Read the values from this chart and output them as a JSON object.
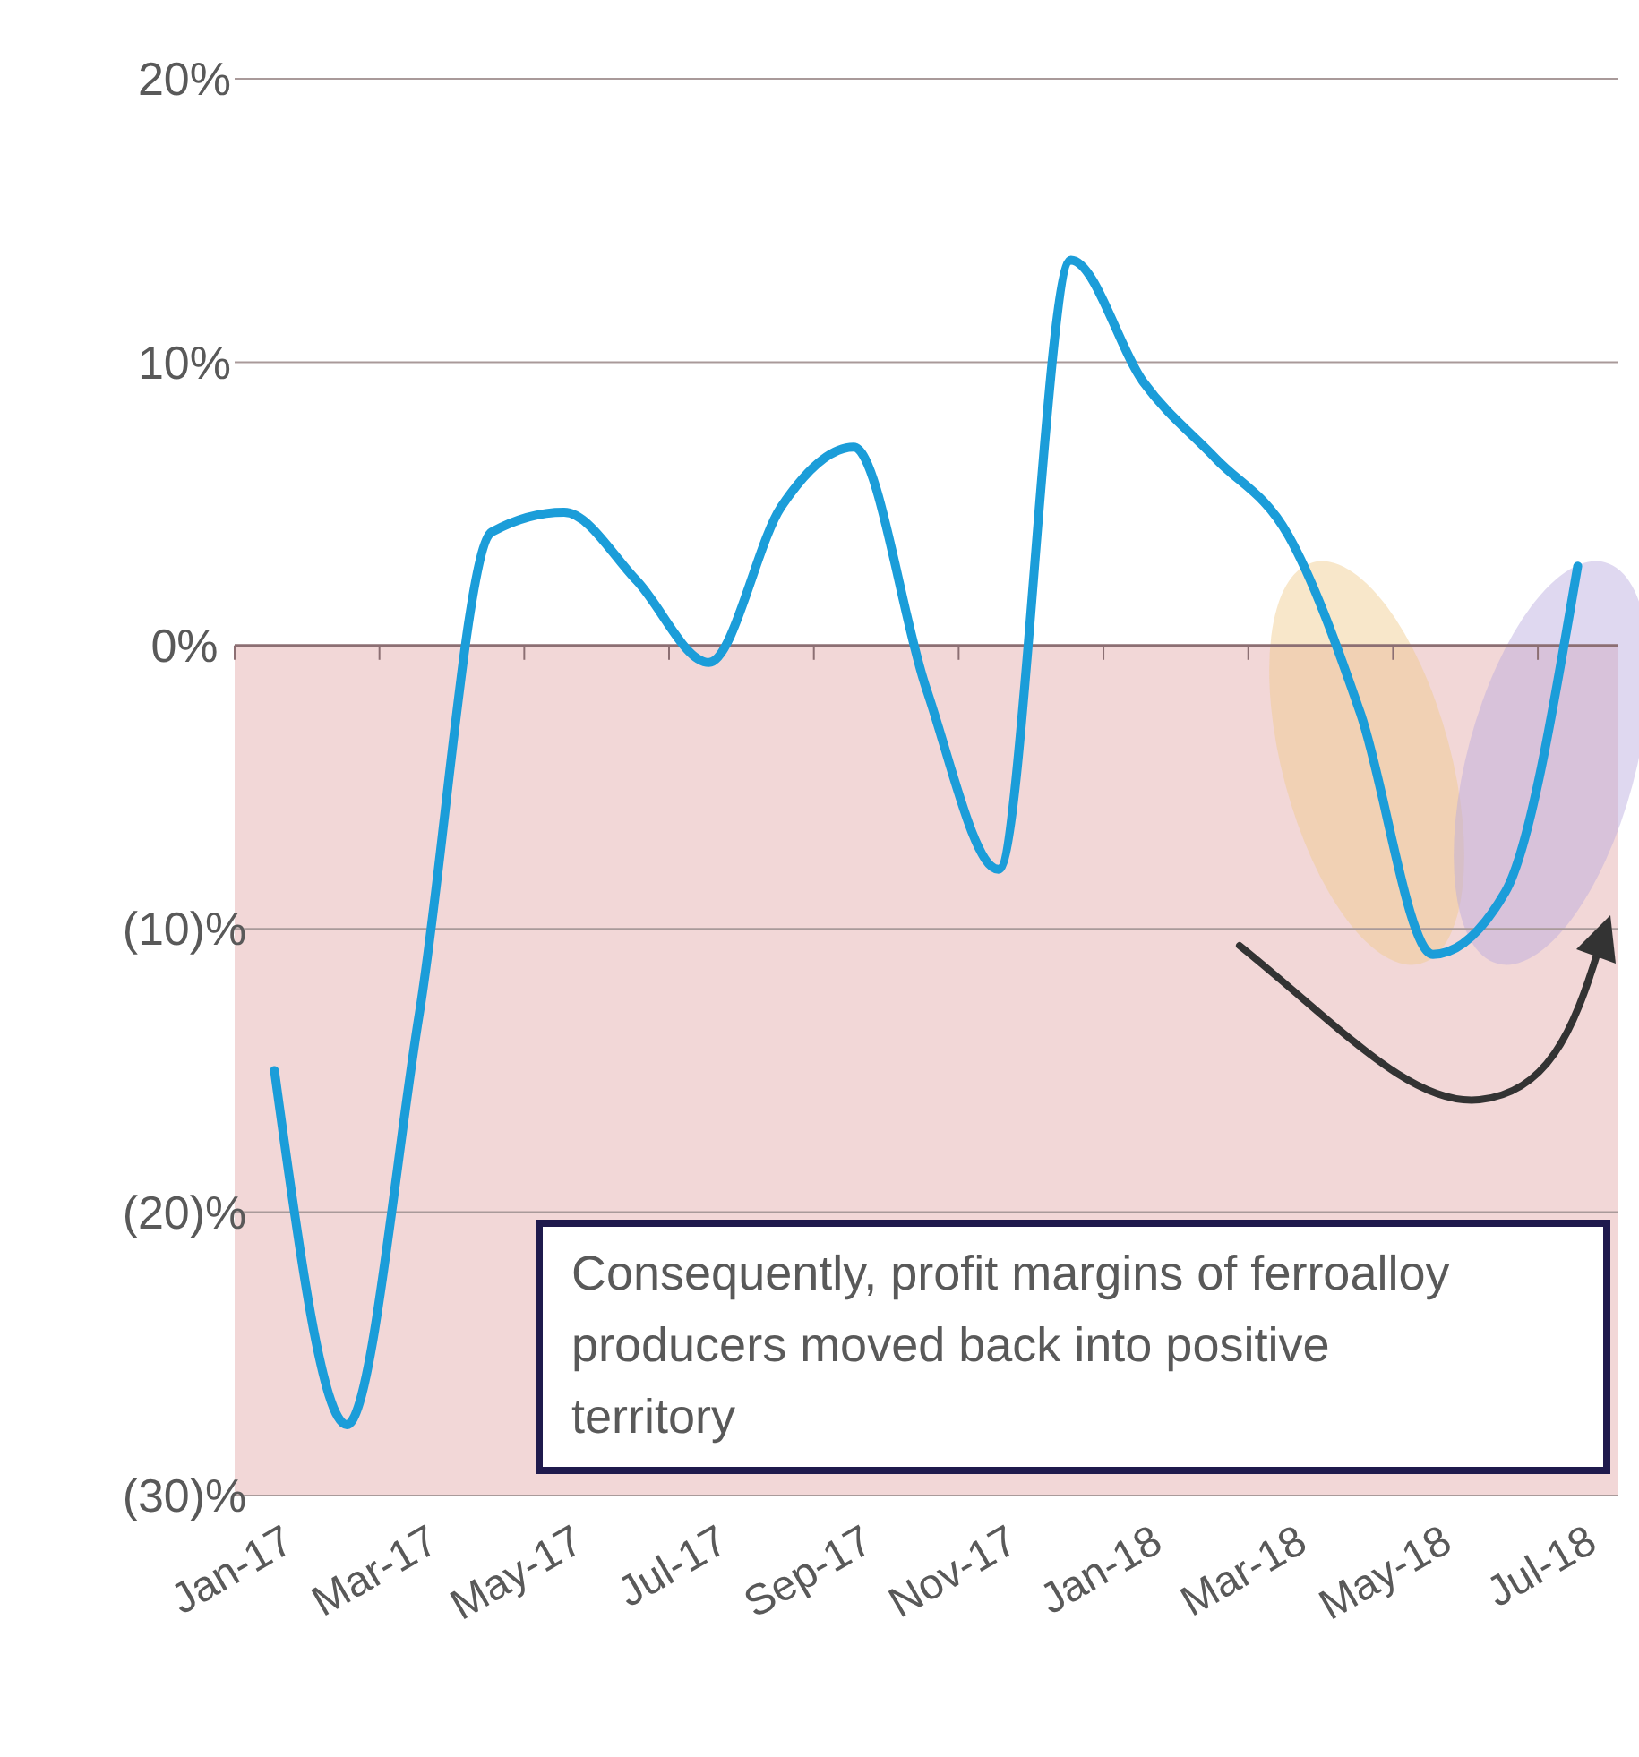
{
  "chart_data": {
    "type": "line",
    "categories": [
      "Jan-17",
      null,
      "Mar-17",
      null,
      "May-17",
      null,
      "Jul-17",
      null,
      "Sep-17",
      null,
      "Nov-17",
      null,
      "Jan-18",
      null,
      "Mar-18",
      null,
      "May-18",
      null,
      "Jul-18"
    ],
    "series": [
      {
        "color": "#1b9dd9",
        "values": [
          -15,
          -27.5,
          -13,
          4,
          4.7,
          2.3,
          -0.6,
          4.9,
          7,
          -1.5,
          -7.9,
          13.6,
          9.3,
          6.6,
          3.9,
          -2.4,
          -10.9,
          -8.7,
          2.8
        ]
      }
    ],
    "ylim": [
      -30,
      20
    ],
    "yticks": [
      {
        "value": 20,
        "label": "20%"
      },
      {
        "value": 10,
        "label": "10%"
      },
      {
        "value": 0,
        "label": "0%"
      },
      {
        "value": -10,
        "label": "(10)%"
      },
      {
        "value": -20,
        "label": "(20)%"
      },
      {
        "value": -30,
        "label": "(30)%"
      }
    ],
    "grid": "y",
    "line_style": "solid",
    "bands": [
      {
        "axis": "y",
        "from": -30,
        "to": 0,
        "color": "#f2d7d7"
      }
    ],
    "annotations": [
      "Consequently, profit margins of ferroalloy producers moved back into positive territory"
    ]
  }
}
